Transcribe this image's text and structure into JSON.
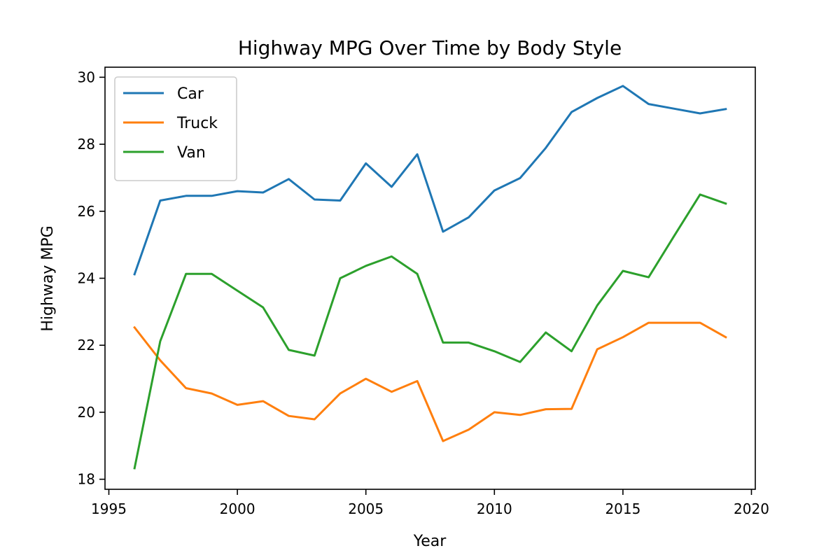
{
  "chart_data": {
    "type": "line",
    "title": "Highway MPG Over Time by Body Style",
    "xlabel": "Year",
    "ylabel": "Highway MPG",
    "xlim": [
      1994.85,
      2020.15
    ],
    "ylim": [
      17.7,
      30.3
    ],
    "xticks": [
      1995,
      2000,
      2005,
      2010,
      2015,
      2020
    ],
    "yticks": [
      18,
      20,
      22,
      24,
      26,
      28,
      30
    ],
    "grid": false,
    "legend_position": "top-left",
    "x": [
      1996,
      1997,
      1998,
      1999,
      2000,
      2001,
      2002,
      2003,
      2004,
      2005,
      2006,
      2007,
      2008,
      2009,
      2010,
      2011,
      2012,
      2013,
      2014,
      2015,
      2016,
      2017,
      2018,
      2019
    ],
    "series": [
      {
        "name": "Car",
        "color": "#1f77b4",
        "values": [
          24.12,
          26.32,
          26.46,
          26.46,
          26.6,
          26.56,
          26.96,
          26.35,
          26.32,
          27.43,
          26.73,
          27.7,
          25.39,
          25.82,
          26.62,
          26.99,
          27.89,
          28.96,
          29.38,
          29.74,
          29.2,
          29.06,
          28.92,
          29.05
        ]
      },
      {
        "name": "Truck",
        "color": "#ff7f0e",
        "values": [
          22.53,
          21.55,
          20.72,
          20.56,
          20.22,
          20.33,
          19.89,
          19.79,
          20.56,
          21.0,
          20.61,
          20.93,
          19.14,
          19.48,
          20.0,
          19.92,
          20.09,
          20.1,
          21.88,
          22.24,
          22.67,
          22.67,
          22.67,
          22.24
        ]
      },
      {
        "name": "Van",
        "color": "#2ca02c",
        "values": [
          18.33,
          22.12,
          24.13,
          24.13,
          23.63,
          23.13,
          21.86,
          21.69,
          24.0,
          24.37,
          24.65,
          24.13,
          22.08,
          22.08,
          21.82,
          21.5,
          22.38,
          21.82,
          23.19,
          24.22,
          24.03,
          25.27,
          26.5,
          26.23
        ]
      }
    ]
  }
}
